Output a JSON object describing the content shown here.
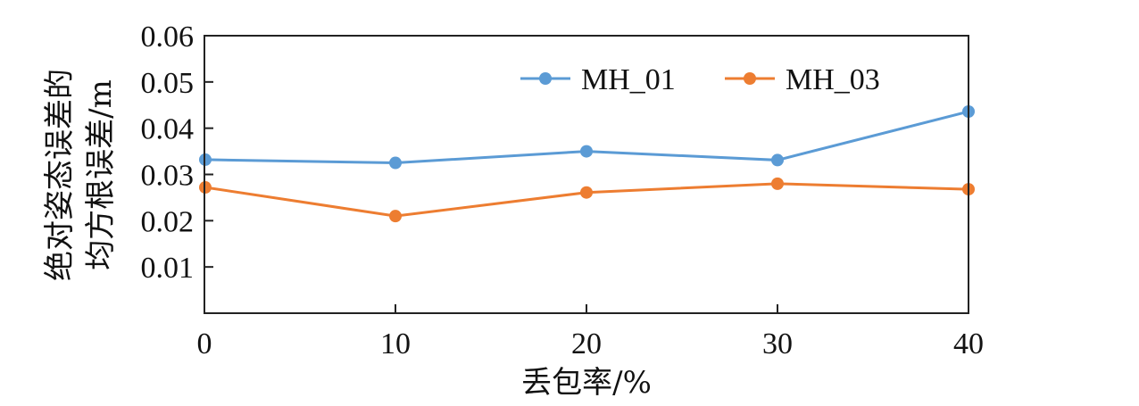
{
  "chart_data": {
    "type": "line",
    "x": [
      0,
      10,
      20,
      30,
      40
    ],
    "x_ticks": [
      "0",
      "10",
      "20",
      "30",
      "40"
    ],
    "y_ticks": [
      "0.01",
      "0.02",
      "0.03",
      "0.04",
      "0.05",
      "0.06"
    ],
    "xlim": [
      0,
      40
    ],
    "ylim": [
      0,
      0.06
    ],
    "xlabel": "丢包率/%",
    "ylabel_lines": [
      "绝对姿态误差的",
      "均方根误差/m"
    ],
    "grid": false,
    "legend_position": "top-right",
    "series": [
      {
        "name": "MH_01",
        "color": "#5b9bd5",
        "values": [
          0.0332,
          0.0325,
          0.035,
          0.0331,
          0.0436
        ]
      },
      {
        "name": "MH_03",
        "color": "#ed7d31",
        "values": [
          0.0272,
          0.021,
          0.0261,
          0.028,
          0.0268
        ]
      }
    ]
  }
}
